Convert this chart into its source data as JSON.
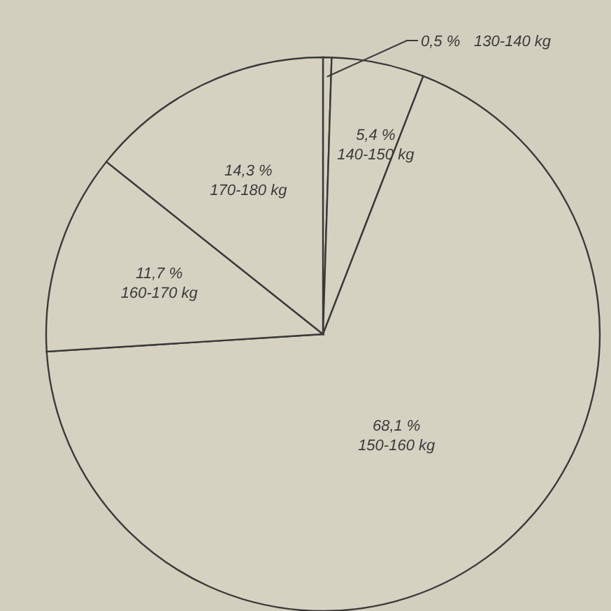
{
  "chart_data": {
    "type": "pie",
    "categories": [
      "130-140 kg",
      "140-150 kg",
      "150-160 kg",
      "160-170 kg",
      "170-180 kg"
    ],
    "values": [
      0.5,
      5.4,
      68.1,
      11.7,
      14.3
    ],
    "value_labels": [
      "0,5 %",
      "5,4 %",
      "68,1 %",
      "11,7 %",
      "14,3 %"
    ],
    "colors": [
      "#d6d2c2",
      "#d6d2c2",
      "#d6d2c2",
      "#d6d2c2",
      "#d6d2c2"
    ]
  }
}
